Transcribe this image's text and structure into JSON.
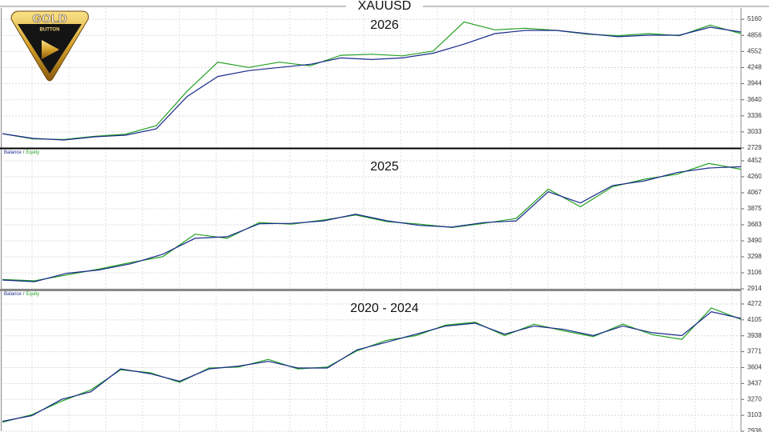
{
  "title": "XAUUSD",
  "logo": {
    "line1": "GOLD",
    "line2": "BUTTON"
  },
  "chart_data": [
    {
      "type": "line",
      "title": "2026",
      "ylim": [
        2729,
        5373
      ],
      "yticks": [
        2729,
        3033,
        3336,
        3640,
        3944,
        4248,
        4552,
        4856,
        5160
      ],
      "grid": true,
      "series": [
        {
          "color": "#22a022",
          "values": [
            3000,
            2900,
            2890,
            2950,
            2990,
            3150,
            3800,
            4350,
            4250,
            4350,
            4280,
            4480,
            4500,
            4470,
            4560,
            5110,
            4960,
            4990,
            4950,
            4880,
            4850,
            4890,
            4850,
            5050,
            4890
          ]
        },
        {
          "color": "#1a2a8c",
          "values": [
            3000,
            2910,
            2880,
            2940,
            2970,
            3090,
            3700,
            4080,
            4190,
            4250,
            4310,
            4430,
            4400,
            4430,
            4520,
            4690,
            4890,
            4950,
            4950,
            4890,
            4830,
            4860,
            4860,
            5010,
            4920
          ]
        }
      ]
    },
    {
      "type": "line",
      "title": "2025",
      "legend_separator": "/",
      "ylim": [
        2914,
        4586
      ],
      "yticks": [
        2914,
        3106,
        3298,
        3490,
        3683,
        3875,
        4067,
        4260,
        4452
      ],
      "grid": true,
      "series": [
        {
          "name": "Equity",
          "color": "#22a022",
          "values": [
            3025,
            3010,
            3080,
            3150,
            3230,
            3300,
            3570,
            3520,
            3710,
            3690,
            3740,
            3800,
            3720,
            3690,
            3650,
            3700,
            3760,
            4110,
            3900,
            4140,
            4230,
            4290,
            4420,
            4350
          ]
        },
        {
          "name": "Balance",
          "color": "#1a2a8c",
          "values": [
            3020,
            3000,
            3100,
            3140,
            3215,
            3330,
            3520,
            3540,
            3695,
            3700,
            3730,
            3810,
            3730,
            3675,
            3655,
            3710,
            3730,
            4080,
            3945,
            4155,
            4210,
            4310,
            4365,
            4380
          ]
        }
      ]
    },
    {
      "type": "line",
      "title": "2020 - 2024",
      "legend_separator": "/",
      "ylim": [
        2936,
        4406
      ],
      "yticks": [
        2936,
        3103,
        3270,
        3437,
        3604,
        3771,
        3938,
        4105,
        4272
      ],
      "grid": true,
      "series": [
        {
          "name": "Equity",
          "color": "#22a022",
          "values": [
            3030,
            3110,
            3250,
            3370,
            3580,
            3550,
            3450,
            3600,
            3610,
            3690,
            3590,
            3610,
            3780,
            3890,
            3940,
            4050,
            4080,
            3940,
            4060,
            3990,
            3930,
            4060,
            3950,
            3900,
            4230,
            4110
          ]
        },
        {
          "name": "Balance",
          "color": "#1a2a8c",
          "values": [
            3040,
            3100,
            3270,
            3350,
            3590,
            3540,
            3460,
            3590,
            3620,
            3670,
            3600,
            3600,
            3790,
            3870,
            3955,
            4040,
            4070,
            3955,
            4040,
            4005,
            3940,
            4040,
            3970,
            3940,
            4190,
            4120
          ]
        }
      ]
    }
  ]
}
